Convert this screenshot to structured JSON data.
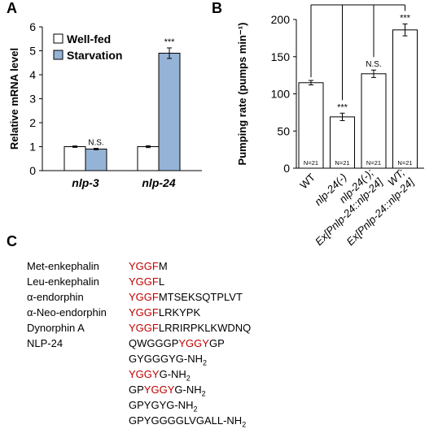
{
  "panel_labels": {
    "a": "A",
    "b": "B",
    "c": "C"
  },
  "colors": {
    "wellfed": "#ffffff",
    "starvation": "#95b3d7",
    "motif_red": "#c00000",
    "stroke": "#000000"
  },
  "chart_data": [
    {
      "type": "bar",
      "panel": "A",
      "ylabel": "Relative mRNA level",
      "ylim": [
        0,
        6
      ],
      "yticks": [
        "0",
        "1",
        "2",
        "3",
        "4",
        "5",
        "6"
      ],
      "categories": [
        "nlp-3",
        "nlp-24"
      ],
      "series": [
        {
          "name": "Well-fed",
          "values": [
            1.0,
            1.0
          ],
          "errors": [
            0.03,
            0.04
          ],
          "color": "#ffffff"
        },
        {
          "name": "Starvation",
          "values": [
            0.9,
            4.9
          ],
          "errors": [
            0.03,
            0.22
          ],
          "color": "#95b3d7"
        }
      ],
      "annotations": [
        {
          "category_index": 0,
          "series_index": 1,
          "text": "N.S."
        },
        {
          "category_index": 1,
          "series_index": 1,
          "text": "***"
        }
      ],
      "legend_position": "top-left",
      "grid": false
    },
    {
      "type": "bar",
      "panel": "B",
      "ylabel": "Pumping rate (pumps min⁻¹)",
      "ylim": [
        0,
        200
      ],
      "yticks": [
        "0",
        "50",
        "100",
        "150",
        "200"
      ],
      "categories": [
        "WT",
        "nlp-24(-)",
        "nlp-24(-);\nEx[Pnlp-24::nlp-24]",
        "WT;\nEx[Pnlp-24::nlp-24]"
      ],
      "values": [
        115,
        69,
        127,
        186
      ],
      "errors": [
        3,
        5,
        5,
        8
      ],
      "n_labels": [
        "N=21",
        "N=21",
        "N=21",
        "N=21"
      ],
      "annotations": [
        "",
        "***",
        "N.S.",
        "***"
      ],
      "grid": false
    }
  ],
  "peptides": [
    {
      "name": "Met-enkephalin",
      "parts": [
        {
          "t": "YGGF",
          "red": true
        },
        {
          "t": "M",
          "red": false
        }
      ]
    },
    {
      "name": "Leu-enkephalin",
      "parts": [
        {
          "t": "YGGF",
          "red": true
        },
        {
          "t": "L",
          "red": false
        }
      ]
    },
    {
      "name": "α-endorphin",
      "parts": [
        {
          "t": "YGGF",
          "red": true
        },
        {
          "t": "MTSEKSQTPLVT",
          "red": false
        }
      ]
    },
    {
      "name": "α-Neo-endorphin",
      "parts": [
        {
          "t": "YGGF",
          "red": true
        },
        {
          "t": "LRKYPK",
          "red": false
        }
      ]
    },
    {
      "name": "Dynorphin A",
      "parts": [
        {
          "t": "YGGF",
          "red": true
        },
        {
          "t": "LRRIRPKLKWDNQ",
          "red": false
        }
      ]
    },
    {
      "name": "NLP-24",
      "parts": [
        {
          "t": "QWGGGP",
          "red": false
        },
        {
          "t": "YGGY",
          "red": true
        },
        {
          "t": "GP",
          "red": false
        }
      ]
    },
    {
      "name": "",
      "parts": [
        {
          "t": "GYGGGYG-NH",
          "red": false
        },
        {
          "t": "2",
          "red": false,
          "sub": true
        }
      ]
    },
    {
      "name": "",
      "parts": [
        {
          "t": "YGGY",
          "red": true
        },
        {
          "t": "G-NH",
          "red": false
        },
        {
          "t": "2",
          "red": false,
          "sub": true
        }
      ]
    },
    {
      "name": "",
      "parts": [
        {
          "t": "GP",
          "red": false
        },
        {
          "t": "YGGY",
          "red": true
        },
        {
          "t": "G-NH",
          "red": false
        },
        {
          "t": "2",
          "red": false,
          "sub": true
        }
      ]
    },
    {
      "name": "",
      "parts": [
        {
          "t": "GPYGYG-NH",
          "red": false
        },
        {
          "t": "2",
          "red": false,
          "sub": true
        }
      ]
    },
    {
      "name": "",
      "parts": [
        {
          "t": "GPYGGGGLVGALL-NH",
          "red": false
        },
        {
          "t": "2",
          "red": false,
          "sub": true
        }
      ]
    }
  ]
}
